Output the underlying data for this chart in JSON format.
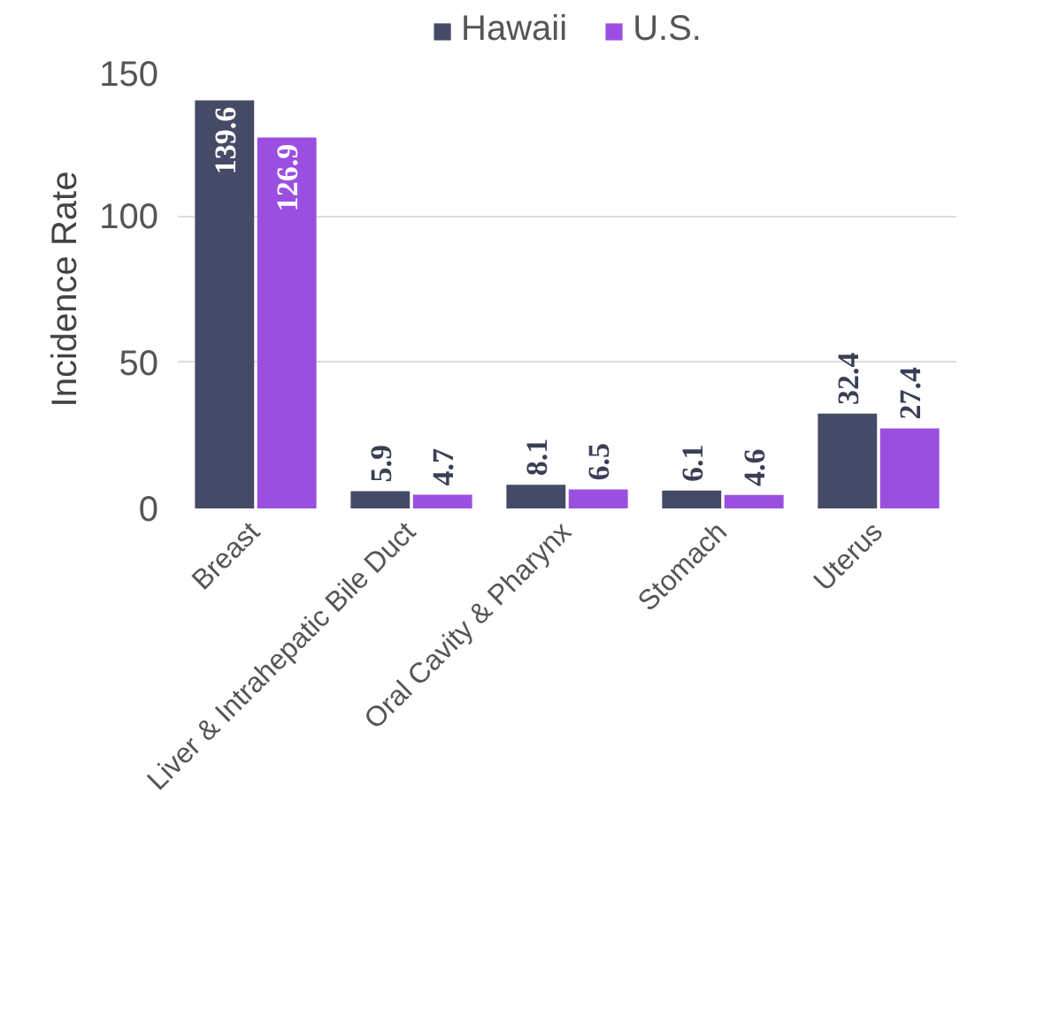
{
  "chart_data": {
    "type": "bar",
    "ylabel": "Incidence Rate",
    "categories": [
      "Breast",
      "Liver & Intrahepatic Bile Duct",
      "Oral Cavity & Pharynx",
      "Stomach",
      "Uterus"
    ],
    "series": [
      {
        "name": "Hawaii",
        "color": "#454b66",
        "values": [
          139.6,
          5.9,
          8.1,
          6.1,
          32.4
        ]
      },
      {
        "name": "U.S.",
        "color": "#9b4fe0",
        "values": [
          126.9,
          4.7,
          6.5,
          4.6,
          27.4
        ]
      }
    ],
    "ylim": [
      0,
      150
    ],
    "yticks": [
      0,
      50,
      100,
      150
    ],
    "grid": "y",
    "legend": "top",
    "data_labels": true
  }
}
